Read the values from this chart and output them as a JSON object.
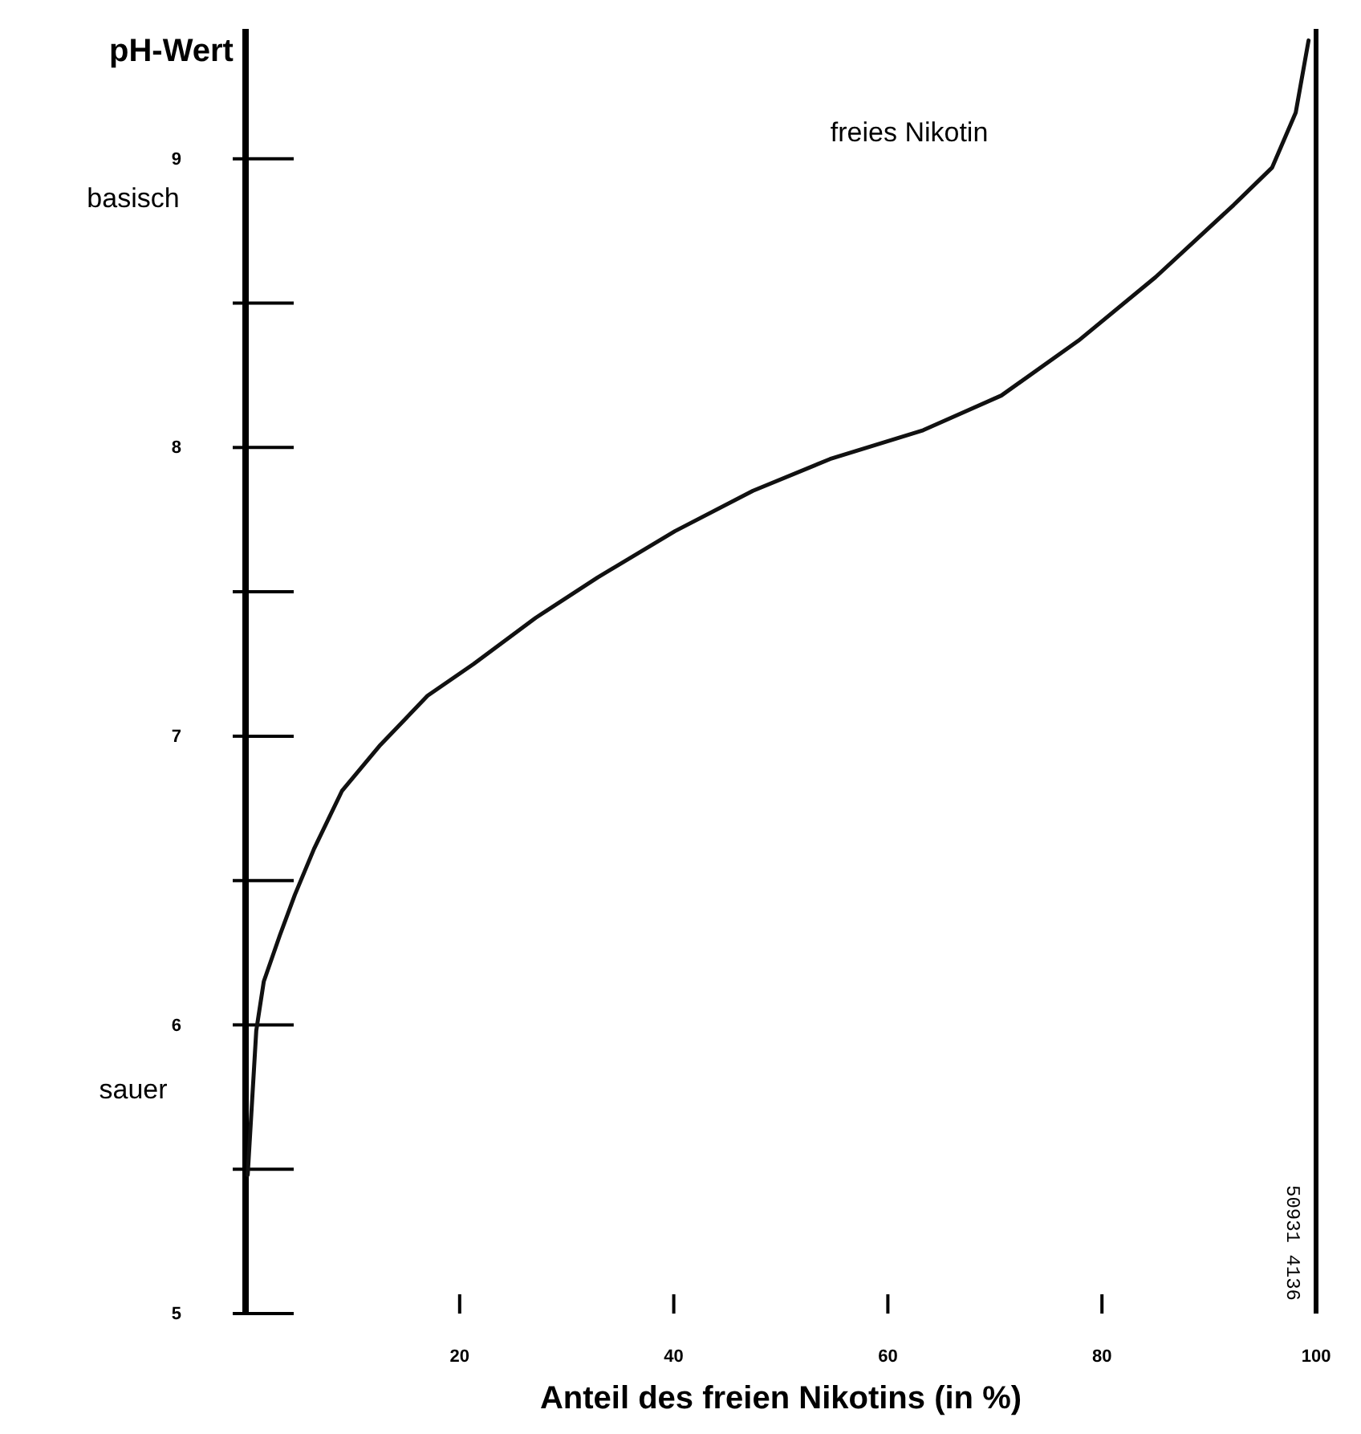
{
  "chart_data": {
    "type": "line",
    "ylabel": "pH-Wert",
    "xlabel": "Anteil des freien Nikotins (in %)",
    "x": [
      0.2,
      1.0,
      1.7,
      3.2,
      4.6,
      6.4,
      9.0,
      12.6,
      17,
      21.3,
      27.1,
      32.9,
      40.1,
      47.4,
      54.6,
      63.3,
      70.6,
      77.8,
      85,
      92.3,
      95.9,
      98.1,
      99.3
    ],
    "series": [
      {
        "name": "freies Nikotin",
        "color": "#111111",
        "values": [
          5.48,
          5.98,
          6.15,
          6.31,
          6.45,
          6.61,
          6.81,
          6.97,
          7.14,
          7.25,
          7.41,
          7.55,
          7.71,
          7.85,
          7.96,
          8.06,
          8.18,
          8.37,
          8.59,
          8.84,
          8.97,
          9.16,
          9.41
        ]
      }
    ],
    "xlim": [
      0,
      100
    ],
    "xticks": [
      20,
      40,
      60,
      80,
      100
    ],
    "ylim": [
      5,
      9.45
    ],
    "yticks": [
      5,
      6,
      7,
      8,
      9
    ],
    "grid": false,
    "line_style": "solid",
    "annotations": [
      "basisch",
      "sauer",
      "50931 4136"
    ]
  }
}
